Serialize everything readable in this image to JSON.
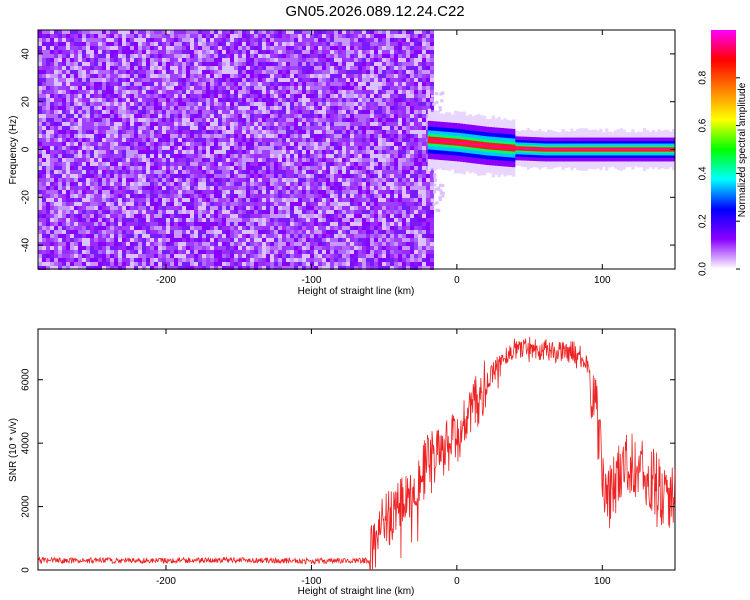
{
  "title": "GN05.2026.089.12.24.C22",
  "chart_data": [
    {
      "type": "heatmap",
      "xlabel": "Height of straight line (km)",
      "ylabel": "Frequency (Hz)",
      "xlim": [
        -288,
        150
      ],
      "ylim": [
        -50,
        50
      ],
      "x_ticks": [
        -200,
        -100,
        0,
        100
      ],
      "y_ticks": [
        -40,
        -20,
        0,
        20,
        40
      ],
      "noise_region_x": [
        -288,
        -18
      ],
      "signal_ridge": {
        "x": [
          -20,
          0,
          20,
          40,
          60,
          100,
          150
        ],
        "freq": [
          4,
          3,
          1.5,
          0.5,
          0,
          0,
          0
        ]
      },
      "colorbar": {
        "label": "Normalized spectral amplitude",
        "range": [
          0,
          1
        ],
        "ticks": [
          0.0,
          0.2,
          0.4,
          0.6,
          0.8
        ],
        "colors": [
          "#ffffff",
          "#8a00ff",
          "#0000ff",
          "#00ffff",
          "#00ff00",
          "#ffff00",
          "#ff8000",
          "#ff0000",
          "#ff00ff"
        ]
      }
    },
    {
      "type": "line",
      "xlabel": "Height of straight line (km)",
      "ylabel": "SNR (10 * v/v)",
      "xlim": [
        -288,
        150
      ],
      "ylim": [
        0,
        7600
      ],
      "x_ticks": [
        -200,
        -100,
        0,
        100
      ],
      "y_ticks": [
        0,
        2000,
        4000,
        6000
      ],
      "color": "#ee2222",
      "series": [
        {
          "x": [
            -288,
            -200,
            -150,
            -100,
            -60,
            -58,
            -50,
            -40,
            -30,
            -20,
            -10,
            0,
            10,
            20,
            30,
            40,
            50,
            60,
            70,
            80,
            88,
            95,
            100,
            105,
            110,
            120,
            130,
            140,
            150
          ],
          "values": [
            300,
            300,
            320,
            280,
            300,
            700,
            1500,
            2000,
            2600,
            3400,
            3700,
            4200,
            5000,
            5800,
            6600,
            7000,
            7050,
            6950,
            6850,
            6900,
            6600,
            5400,
            3000,
            2200,
            3000,
            3500,
            3000,
            2500,
            2300
          ]
        }
      ]
    }
  ]
}
